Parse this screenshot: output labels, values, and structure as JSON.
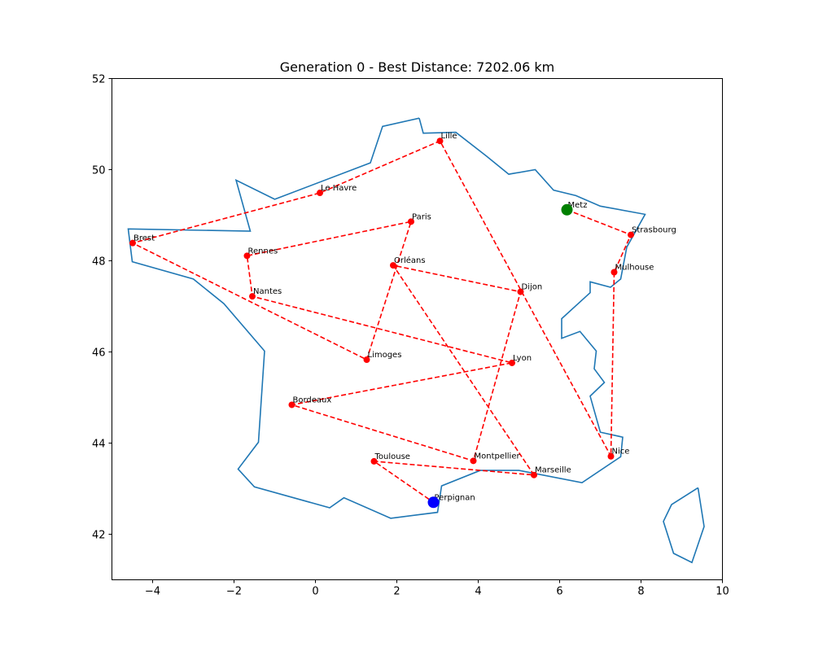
{
  "chart_data": {
    "type": "scatter",
    "title": "Generation 0 - Best Distance: 7202.06 km",
    "xlabel": "",
    "ylabel": "",
    "xlim": [
      -5,
      10
    ],
    "ylim": [
      41,
      52
    ],
    "xticks": [
      -4,
      -2,
      0,
      2,
      4,
      6,
      8,
      10
    ],
    "yticks": [
      42,
      44,
      46,
      48,
      50,
      52
    ],
    "grid": false,
    "colors": {
      "border": "#1f77b4",
      "route": "#ff0000",
      "city": "#ff0000",
      "start": "#008000",
      "end": "#0000ff"
    },
    "border": [
      [
        2.55,
        51.13
      ],
      [
        1.65,
        50.95
      ],
      [
        1.35,
        50.15
      ],
      [
        -1.0,
        49.35
      ],
      [
        -1.95,
        49.77
      ],
      [
        -1.6,
        48.65
      ],
      [
        -4.6,
        48.7
      ],
      [
        -4.5,
        47.98
      ],
      [
        -3.0,
        47.6
      ],
      [
        -2.25,
        47.06
      ],
      [
        -1.25,
        46.02
      ],
      [
        -1.4,
        44.02
      ],
      [
        -1.9,
        43.43
      ],
      [
        -1.5,
        43.04
      ],
      [
        0.35,
        42.58
      ],
      [
        0.7,
        42.8
      ],
      [
        1.85,
        42.35
      ],
      [
        3.0,
        42.48
      ],
      [
        3.1,
        43.06
      ],
      [
        4.05,
        43.4
      ],
      [
        5.0,
        43.4
      ],
      [
        6.55,
        43.13
      ],
      [
        7.5,
        43.7
      ],
      [
        7.55,
        44.13
      ],
      [
        7.0,
        44.24
      ],
      [
        6.75,
        45.03
      ],
      [
        7.1,
        45.33
      ],
      [
        6.85,
        45.63
      ],
      [
        6.9,
        46.02
      ],
      [
        6.5,
        46.45
      ],
      [
        6.05,
        46.3
      ],
      [
        6.05,
        46.73
      ],
      [
        6.75,
        47.3
      ],
      [
        6.75,
        47.54
      ],
      [
        7.25,
        47.42
      ],
      [
        7.5,
        47.6
      ],
      [
        7.65,
        48.3
      ],
      [
        8.1,
        49.02
      ],
      [
        7.0,
        49.2
      ],
      [
        6.4,
        49.43
      ],
      [
        5.85,
        49.55
      ],
      [
        5.4,
        50.0
      ],
      [
        4.75,
        49.9
      ],
      [
        4.2,
        50.3
      ],
      [
        3.45,
        50.82
      ],
      [
        2.65,
        50.8
      ],
      [
        2.55,
        51.13
      ]
    ],
    "corsica": [
      [
        9.4,
        43.02
      ],
      [
        9.55,
        42.17
      ],
      [
        9.25,
        41.38
      ],
      [
        8.8,
        41.58
      ],
      [
        8.55,
        42.28
      ],
      [
        8.75,
        42.65
      ],
      [
        9.4,
        43.02
      ]
    ],
    "cities": [
      {
        "name": "Paris",
        "x": 2.35,
        "y": 48.86
      },
      {
        "name": "Marseille",
        "x": 5.37,
        "y": 43.3
      },
      {
        "name": "Lyon",
        "x": 4.83,
        "y": 45.76
      },
      {
        "name": "Toulouse",
        "x": 1.44,
        "y": 43.6
      },
      {
        "name": "Nice",
        "x": 7.26,
        "y": 43.71
      },
      {
        "name": "Nantes",
        "x": -1.55,
        "y": 47.22
      },
      {
        "name": "Strasbourg",
        "x": 7.75,
        "y": 48.57
      },
      {
        "name": "Montpellier",
        "x": 3.88,
        "y": 43.61
      },
      {
        "name": "Bordeaux",
        "x": -0.58,
        "y": 44.84
      },
      {
        "name": "Lille",
        "x": 3.06,
        "y": 50.63
      },
      {
        "name": "Rennes",
        "x": -1.68,
        "y": 48.11
      },
      {
        "name": "Le Havre",
        "x": 0.11,
        "y": 49.49
      },
      {
        "name": "Dijon",
        "x": 5.04,
        "y": 47.32
      },
      {
        "name": "Brest",
        "x": -4.49,
        "y": 48.39
      },
      {
        "name": "Limoges",
        "x": 1.26,
        "y": 45.83
      },
      {
        "name": "Orléans",
        "x": 1.91,
        "y": 47.9
      },
      {
        "name": "Mulhouse",
        "x": 7.34,
        "y": 47.75
      },
      {
        "name": "Metz",
        "x": 6.18,
        "y": 49.12
      },
      {
        "name": "Perpignan",
        "x": 2.9,
        "y": 42.7
      }
    ],
    "route": [
      "Metz",
      "Strasbourg",
      "Mulhouse",
      "Nice",
      "Lille",
      "Le Havre",
      "Brest",
      "Limoges",
      "Paris",
      "Rennes",
      "Nantes",
      "Lyon",
      "Bordeaux",
      "Montpellier",
      "Dijon",
      "Orléans",
      "Marseille",
      "Toulouse",
      "Perpignan"
    ],
    "start_city": "Metz",
    "end_city": "Perpignan"
  }
}
